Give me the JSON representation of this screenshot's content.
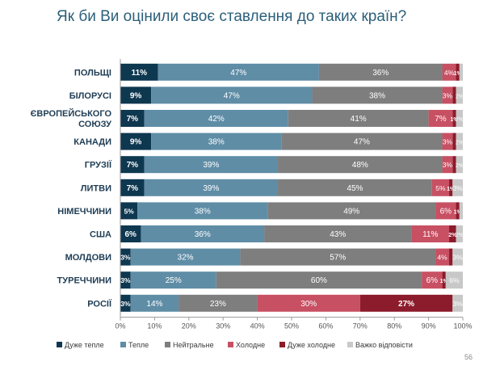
{
  "title": "Як би Ви оцінили своє ставлення до таких країн?",
  "page_number": "56",
  "chart_data": {
    "type": "bar",
    "orientation": "horizontal",
    "stacked": "percent",
    "title": "Як би Ви оцінили своє ставлення до таких країн?",
    "categories": [
      "ПОЛЬЩІ",
      "БІЛОРУСІ",
      "ЄВРОПЕЙСЬКОГО СОЮЗУ",
      "КАНАДИ",
      "ГРУЗІЇ",
      "ЛИТВИ",
      "НІМЕЧЧИНИ",
      "США",
      "МОЛДОВИ",
      "ТУРЕЧЧИНИ",
      "РОСІЇ"
    ],
    "series": [
      {
        "name": "Дуже тепле",
        "color": "#0e3750",
        "values": [
          11,
          9,
          7,
          9,
          7,
          7,
          5,
          6,
          3,
          3,
          3
        ]
      },
      {
        "name": "Тепле",
        "color": "#5f8da6",
        "values": [
          47,
          47,
          42,
          38,
          39,
          39,
          38,
          36,
          32,
          25,
          14
        ]
      },
      {
        "name": "Нейтральне",
        "color": "#7e7e7e",
        "values": [
          36,
          38,
          41,
          47,
          48,
          45,
          49,
          43,
          57,
          60,
          23
        ]
      },
      {
        "name": "Холодне",
        "color": "#c85063",
        "values": [
          4,
          3,
          7,
          3,
          3,
          5,
          6,
          11,
          4,
          6,
          30
        ]
      },
      {
        "name": "Дуже холодне",
        "color": "#8c1b2b",
        "values": [
          1,
          1,
          1,
          1,
          1,
          1,
          1,
          2,
          1,
          1,
          27
        ]
      },
      {
        "name": "Важко відповісти",
        "color": "#c8c8c8",
        "values": [
          1,
          2,
          2,
          2,
          2,
          3,
          1,
          2,
          3,
          6,
          3
        ]
      }
    ],
    "data_labels": [
      [
        "11%",
        "47%",
        "36%",
        "4%",
        "1%",
        ""
      ],
      [
        "9%",
        "47%",
        "38%",
        "3%",
        "",
        "2%"
      ],
      [
        "7%",
        "42%",
        "41%",
        "7%",
        "1%",
        "2%"
      ],
      [
        "9%",
        "38%",
        "47%",
        "3%",
        "",
        "2%"
      ],
      [
        "7%",
        "39%",
        "48%",
        "3%",
        "",
        "2%"
      ],
      [
        "7%",
        "39%",
        "45%",
        "5%",
        "1%",
        "3%"
      ],
      [
        "5%",
        "38%",
        "49%",
        "6%",
        "1%",
        ""
      ],
      [
        "6%",
        "36%",
        "43%",
        "11%",
        "2%",
        "2%"
      ],
      [
        "3%",
        "32%",
        "57%",
        "4%",
        "",
        "3%"
      ],
      [
        "3%",
        "25%",
        "60%",
        "6%",
        "1%",
        "6%"
      ],
      [
        "3%",
        "14%",
        "23%",
        "30%",
        "27%",
        "3%"
      ]
    ],
    "x_ticks": [
      "0%",
      "10%",
      "20%",
      "30%",
      "40%",
      "50%",
      "60%",
      "70%",
      "80%",
      "90%",
      "100%"
    ],
    "xlim": [
      0,
      100
    ],
    "xlabel": "",
    "ylabel": "",
    "grid": false,
    "legend": "bottom"
  }
}
